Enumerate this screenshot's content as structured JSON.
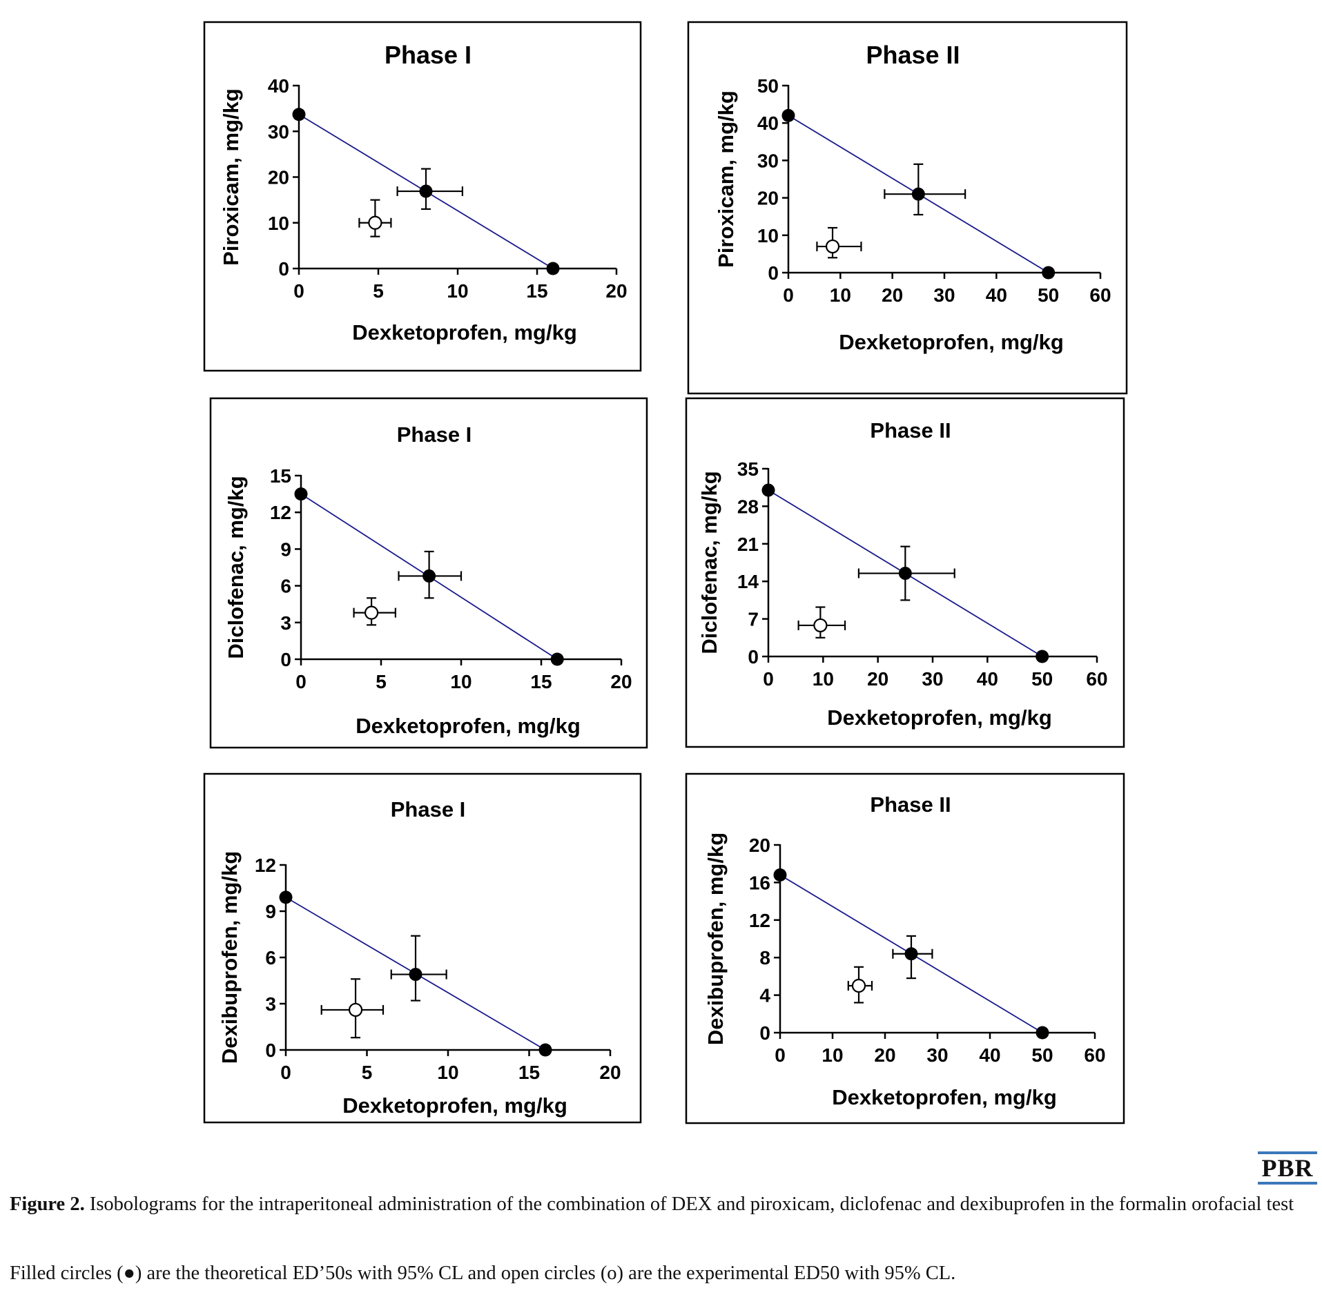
{
  "chart_data": [
    {
      "type": "scatter",
      "title": "Phase I",
      "xlabel": "Dexketoprofen, mg/kg",
      "ylabel": "Piroxicam, mg/kg",
      "xlim": [
        0,
        20
      ],
      "xticks": [
        0,
        5,
        10,
        15,
        20
      ],
      "ylim": [
        0,
        40
      ],
      "yticks": [
        0,
        10,
        20,
        30,
        40
      ],
      "isobole": [
        [
          0,
          33.7
        ],
        [
          16,
          0
        ]
      ],
      "theoretical": [
        {
          "x": 0,
          "y": 33.7
        },
        {
          "x": 8,
          "y": 16.9,
          "xerr": [
            6.2,
            10.3
          ],
          "yerr": [
            13,
            21.8
          ]
        },
        {
          "x": 16,
          "y": 0
        }
      ],
      "experimental": [
        {
          "x": 4.8,
          "y": 10,
          "xerr": [
            3.8,
            5.8
          ],
          "yerr": [
            7,
            15
          ]
        }
      ]
    },
    {
      "type": "scatter",
      "title": "Phase II",
      "xlabel": "Dexketoprofen, mg/kg",
      "ylabel": "Piroxicam, mg/kg",
      "xlim": [
        0,
        60
      ],
      "xticks": [
        0,
        10,
        20,
        30,
        40,
        50,
        60
      ],
      "ylim": [
        0,
        50
      ],
      "yticks": [
        0,
        10,
        20,
        30,
        40,
        50
      ],
      "isobole": [
        [
          0,
          42
        ],
        [
          50,
          0
        ]
      ],
      "theoretical": [
        {
          "x": 0,
          "y": 42
        },
        {
          "x": 25,
          "y": 21,
          "xerr": [
            18.5,
            34
          ],
          "yerr": [
            15.5,
            29
          ]
        },
        {
          "x": 50,
          "y": 0
        }
      ],
      "experimental": [
        {
          "x": 8.5,
          "y": 7,
          "xerr": [
            5.5,
            14
          ],
          "yerr": [
            4,
            12
          ]
        }
      ]
    },
    {
      "type": "scatter",
      "title": "Phase I",
      "xlabel": "Dexketoprofen, mg/kg",
      "ylabel": "Diclofenac, mg/kg",
      "xlim": [
        0,
        20
      ],
      "xticks": [
        0,
        5,
        10,
        15,
        20
      ],
      "ylim": [
        0,
        15
      ],
      "yticks": [
        0,
        3,
        6,
        9,
        12,
        15
      ],
      "isobole": [
        [
          0,
          13.5
        ],
        [
          16,
          0
        ]
      ],
      "theoretical": [
        {
          "x": 0,
          "y": 13.5
        },
        {
          "x": 8,
          "y": 6.8,
          "xerr": [
            6.1,
            10
          ],
          "yerr": [
            5,
            8.8
          ]
        },
        {
          "x": 16,
          "y": 0
        }
      ],
      "experimental": [
        {
          "x": 4.4,
          "y": 3.8,
          "xerr": [
            3.3,
            5.9
          ],
          "yerr": [
            2.8,
            5
          ]
        }
      ]
    },
    {
      "type": "scatter",
      "title": "Phase II",
      "xlabel": "Dexketoprofen, mg/kg",
      "ylabel": "Diclofenac, mg/kg",
      "xlim": [
        0,
        60
      ],
      "xticks": [
        0,
        10,
        20,
        30,
        40,
        50,
        60
      ],
      "ylim": [
        0,
        35
      ],
      "yticks": [
        0,
        7,
        14,
        21,
        28,
        35
      ],
      "isobole": [
        [
          0,
          31
        ],
        [
          50,
          0
        ]
      ],
      "theoretical": [
        {
          "x": 0,
          "y": 31
        },
        {
          "x": 25,
          "y": 15.5,
          "xerr": [
            16.5,
            34
          ],
          "yerr": [
            10.5,
            20.5
          ]
        },
        {
          "x": 50,
          "y": 0
        }
      ],
      "experimental": [
        {
          "x": 9.5,
          "y": 5.8,
          "xerr": [
            5.5,
            14
          ],
          "yerr": [
            3.5,
            9.2
          ]
        }
      ]
    },
    {
      "type": "scatter",
      "title": "Phase I",
      "xlabel": "Dexketoprofen, mg/kg",
      "ylabel": "Dexibuprofen, mg/kg",
      "xlim": [
        0,
        20
      ],
      "xticks": [
        0,
        5,
        10,
        15,
        20
      ],
      "ylim": [
        0,
        12
      ],
      "yticks": [
        0,
        3,
        6,
        9,
        12
      ],
      "isobole": [
        [
          0,
          9.9
        ],
        [
          16,
          0
        ]
      ],
      "theoretical": [
        {
          "x": 0,
          "y": 9.9
        },
        {
          "x": 8,
          "y": 4.9,
          "xerr": [
            6.5,
            9.9
          ],
          "yerr": [
            3.2,
            7.4
          ]
        },
        {
          "x": 16,
          "y": 0
        }
      ],
      "experimental": [
        {
          "x": 4.3,
          "y": 2.6,
          "xerr": [
            2.2,
            6
          ],
          "yerr": [
            0.8,
            4.6
          ]
        }
      ]
    },
    {
      "type": "scatter",
      "title": "Phase II",
      "xlabel": "Dexketoprofen, mg/kg",
      "ylabel": "Dexibuprofen, mg/kg",
      "xlim": [
        0,
        60
      ],
      "xticks": [
        0,
        10,
        20,
        30,
        40,
        50,
        60
      ],
      "ylim": [
        0,
        20
      ],
      "yticks": [
        0,
        4,
        8,
        12,
        16,
        20
      ],
      "isobole": [
        [
          0,
          16.8
        ],
        [
          50,
          0
        ]
      ],
      "theoretical": [
        {
          "x": 0,
          "y": 16.8
        },
        {
          "x": 25,
          "y": 8.4,
          "xerr": [
            21.5,
            29
          ],
          "yerr": [
            5.8,
            10.3
          ]
        },
        {
          "x": 50,
          "y": 0
        }
      ],
      "experimental": [
        {
          "x": 15,
          "y": 5,
          "xerr": [
            13,
            17.5
          ],
          "yerr": [
            3.2,
            7
          ]
        }
      ]
    }
  ],
  "logo": "PBR",
  "caption": {
    "label": "Figure 2.",
    "text": " Isobolograms for the intraperitoneal administration of the combination of DEX and piroxicam, diclofenac and dexibuprofen in the formalin orofacial test"
  },
  "note": "Filled circles (●) are the theoretical ED’50s with 95% CL and open circles (o) are the experimental ED50 with 95% CL."
}
